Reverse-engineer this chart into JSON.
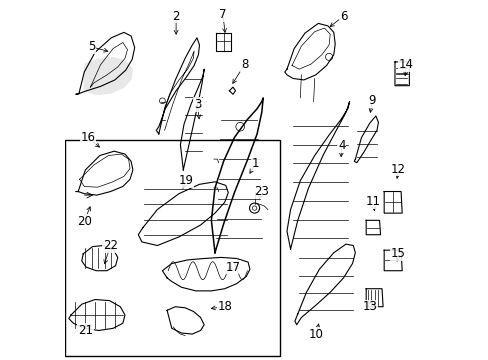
{
  "background_color": "#ffffff",
  "line_color": "#000000",
  "label_fontsize": 8.5,
  "figsize": [
    4.89,
    3.6
  ],
  "dpi": 100,
  "label_targets": {
    "5": {
      "lpos": [
        0.075,
        0.87
      ],
      "tpos": [
        0.13,
        0.855
      ]
    },
    "2": {
      "lpos": [
        0.31,
        0.955
      ],
      "tpos": [
        0.31,
        0.895
      ]
    },
    "7": {
      "lpos": [
        0.44,
        0.96
      ],
      "tpos": [
        0.447,
        0.9
      ]
    },
    "8": {
      "lpos": [
        0.5,
        0.82
      ],
      "tpos": [
        0.462,
        0.76
      ]
    },
    "3": {
      "lpos": [
        0.37,
        0.71
      ],
      "tpos": [
        0.375,
        0.66
      ]
    },
    "1": {
      "lpos": [
        0.53,
        0.545
      ],
      "tpos": [
        0.51,
        0.51
      ]
    },
    "6": {
      "lpos": [
        0.775,
        0.955
      ],
      "tpos": [
        0.73,
        0.92
      ]
    },
    "9": {
      "lpos": [
        0.855,
        0.72
      ],
      "tpos": [
        0.848,
        0.678
      ]
    },
    "14": {
      "lpos": [
        0.95,
        0.82
      ],
      "tpos": [
        0.945,
        0.78
      ]
    },
    "4": {
      "lpos": [
        0.77,
        0.595
      ],
      "tpos": [
        0.768,
        0.555
      ]
    },
    "12": {
      "lpos": [
        0.928,
        0.53
      ],
      "tpos": [
        0.922,
        0.495
      ]
    },
    "11": {
      "lpos": [
        0.858,
        0.44
      ],
      "tpos": [
        0.862,
        0.405
      ]
    },
    "15": {
      "lpos": [
        0.928,
        0.295
      ],
      "tpos": [
        0.922,
        0.265
      ]
    },
    "13": {
      "lpos": [
        0.848,
        0.148
      ],
      "tpos": [
        0.858,
        0.175
      ]
    },
    "10": {
      "lpos": [
        0.7,
        0.072
      ],
      "tpos": [
        0.708,
        0.11
      ]
    },
    "16": {
      "lpos": [
        0.065,
        0.618
      ],
      "tpos": [
        0.105,
        0.585
      ]
    },
    "20": {
      "lpos": [
        0.055,
        0.385
      ],
      "tpos": [
        0.075,
        0.435
      ]
    },
    "22": {
      "lpos": [
        0.128,
        0.318
      ],
      "tpos": [
        0.108,
        0.258
      ]
    },
    "19": {
      "lpos": [
        0.338,
        0.498
      ],
      "tpos": [
        0.325,
        0.468
      ]
    },
    "23": {
      "lpos": [
        0.548,
        0.468
      ],
      "tpos": [
        0.538,
        0.438
      ]
    },
    "17": {
      "lpos": [
        0.468,
        0.258
      ],
      "tpos": [
        0.448,
        0.248
      ]
    },
    "18": {
      "lpos": [
        0.445,
        0.148
      ],
      "tpos": [
        0.398,
        0.142
      ]
    },
    "21": {
      "lpos": [
        0.058,
        0.082
      ],
      "tpos": [
        0.082,
        0.105
      ]
    }
  }
}
